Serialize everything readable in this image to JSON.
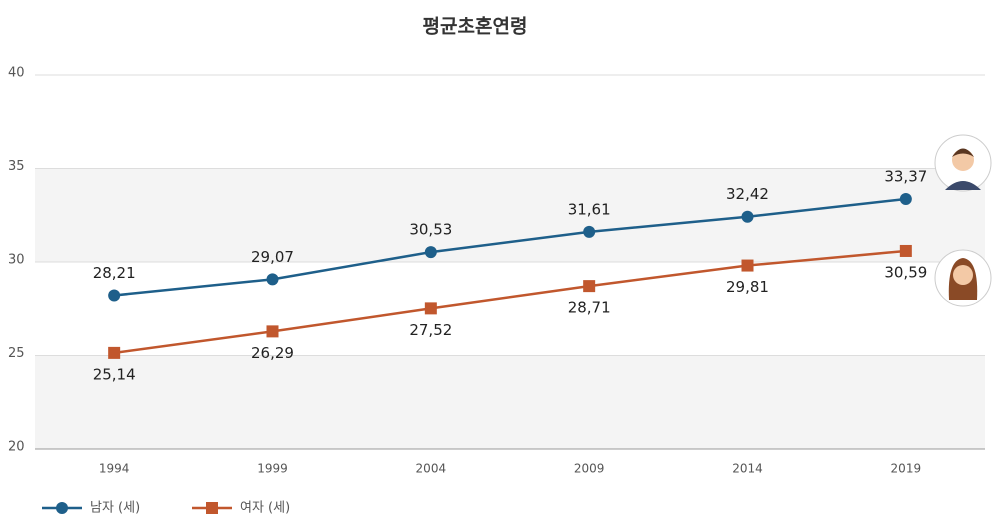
{
  "chart_data": {
    "type": "line",
    "title": "평균초혼연령",
    "categories": [
      "1994",
      "1999",
      "2004",
      "2009",
      "2014",
      "2019"
    ],
    "series": [
      {
        "name": "남자 (세)",
        "color": "#1e5f8a",
        "marker": "circle",
        "values": [
          28.21,
          29.07,
          30.53,
          31.61,
          32.42,
          33.37
        ],
        "value_labels": [
          "28,21",
          "29,07",
          "30,53",
          "31,61",
          "32,42",
          "33,37"
        ]
      },
      {
        "name": "여자 (세)",
        "color": "#c1572d",
        "marker": "square",
        "values": [
          25.14,
          26.29,
          27.52,
          28.71,
          29.81,
          30.59
        ],
        "value_labels": [
          "25,14",
          "26,29",
          "27,52",
          "28,71",
          "29,81",
          "30,59"
        ]
      }
    ],
    "ylim": [
      20,
      40
    ],
    "yticks": [
      20,
      25,
      30,
      35,
      40
    ],
    "grid": true
  }
}
